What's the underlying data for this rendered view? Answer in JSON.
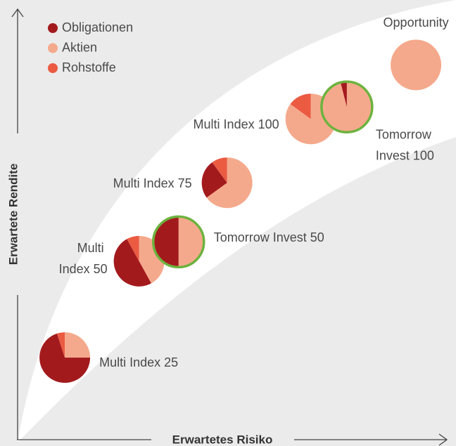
{
  "chart_data": {
    "type": "pie-scatter",
    "xlabel": "Erwartetes Risiko",
    "ylabel": "Erwartete Rendite",
    "categories": [
      "Multi Index 25",
      "Multi Index 50",
      "Tomorrow Invest 50",
      "Multi Index 75",
      "Multi Index 100",
      "Tomorrow Invest 100",
      "Opportunity"
    ],
    "x": [
      11,
      28.3,
      37.5,
      48.8,
      68.3,
      76.7,
      92.8
    ],
    "y": [
      19,
      41.5,
      46,
      59.8,
      74.7,
      77.5,
      87.3
    ],
    "xlim": [
      0,
      100
    ],
    "ylim": [
      0,
      100
    ],
    "series": [
      {
        "name": "Obligationen",
        "color": "#a31a1d",
        "values": [
          70,
          50,
          50,
          25,
          0,
          4,
          0
        ]
      },
      {
        "name": "Aktien",
        "color": "#f5a98c",
        "values": [
          25,
          42,
          50,
          65,
          85,
          96,
          100
        ]
      },
      {
        "name": "Rohstoffe",
        "color": "#ea5b42",
        "values": [
          5,
          8,
          0,
          10,
          15,
          0,
          0
        ]
      }
    ],
    "highlighted": [
      false,
      false,
      true,
      false,
      false,
      true,
      false
    ],
    "highlight_color": "#6db33f",
    "legend": "upper left"
  }
}
